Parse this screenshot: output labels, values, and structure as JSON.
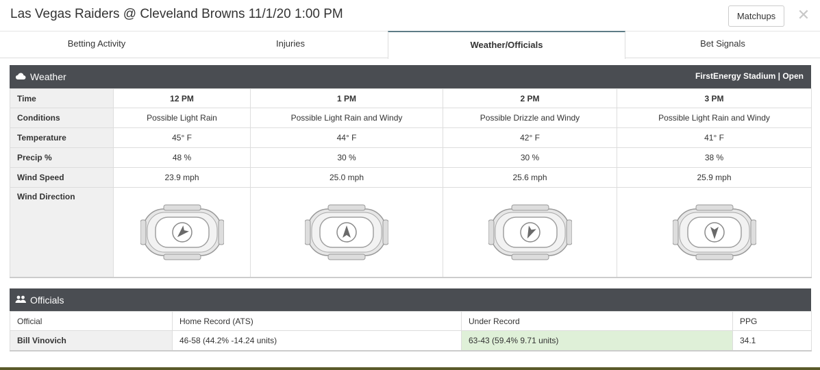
{
  "header": {
    "title": "Las Vegas Raiders @ Cleveland Browns 11/1/20 1:00 PM",
    "matchups_label": "Matchups",
    "close_label": "✕"
  },
  "tabs": [
    {
      "label": "Betting Activity",
      "active": false
    },
    {
      "label": "Injuries",
      "active": false
    },
    {
      "label": "Weather/Officials",
      "active": true
    },
    {
      "label": "Bet Signals",
      "active": false
    }
  ],
  "weather": {
    "title": "Weather",
    "stadium": "FirstEnergy Stadium | Open",
    "row_labels": {
      "time": "Time",
      "conditions": "Conditions",
      "temperature": "Temperature",
      "precip": "Precip %",
      "wind_speed": "Wind Speed",
      "wind_direction": "Wind Direction"
    },
    "hours": [
      {
        "time": "12 PM",
        "conditions": "Possible Light Rain",
        "temperature": "45° F",
        "precip": "48 %",
        "wind_speed": "23.9 mph",
        "wind_angle_deg": 225
      },
      {
        "time": "1 PM",
        "conditions": "Possible Light Rain and Windy",
        "temperature": "44° F",
        "precip": "30 %",
        "wind_speed": "25.0 mph",
        "wind_angle_deg": 0
      },
      {
        "time": "2 PM",
        "conditions": "Possible Drizzle and Windy",
        "temperature": "42° F",
        "precip": "30 %",
        "wind_speed": "25.6 mph",
        "wind_angle_deg": 205
      },
      {
        "time": "3 PM",
        "conditions": "Possible Light Rain and Windy",
        "temperature": "41° F",
        "precip": "38 %",
        "wind_speed": "25.9 mph",
        "wind_angle_deg": 180
      }
    ]
  },
  "officials": {
    "title": "Officials",
    "columns": [
      "Official",
      "Home Record (ATS)",
      "Under Record",
      "PPG"
    ],
    "rows": [
      {
        "official": "Bill Vinovich",
        "home_record": "46-58 (44.2% -14.24 units)",
        "under_record": "63-43 (59.4% 9.71 units)",
        "ppg": "34.1"
      }
    ]
  },
  "icons": {
    "weather": "cloud-icon",
    "officials": "users-icon",
    "stadium": "stadium-icon",
    "wind": "compass-arrow-icon"
  },
  "colors": {
    "panel_header": "#4a4d52",
    "active_tab_border": "#5d7c86",
    "highlight_green": "#dff0d8"
  }
}
